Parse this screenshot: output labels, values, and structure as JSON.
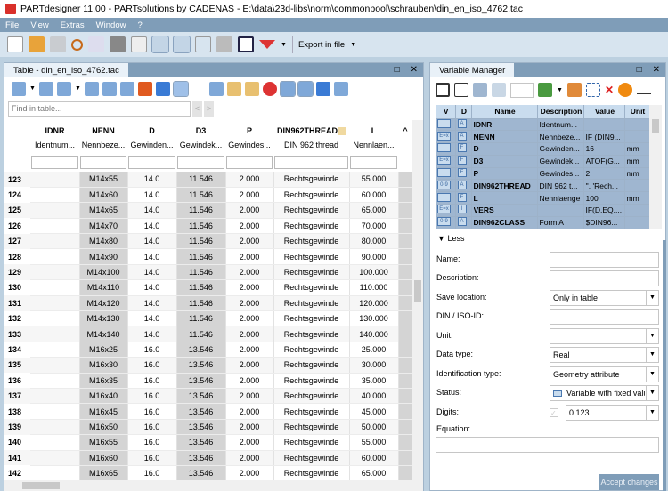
{
  "window": {
    "title": "PARTdesigner 11.00 - PARTsolutions by CADENAS - E:\\data\\23d-libs\\norm\\commonpool\\schrauben\\din_en_iso_4762.tac"
  },
  "menu": [
    "File",
    "View",
    "Extras",
    "Window",
    "?"
  ],
  "toolbar": {
    "export_label": "Export in file"
  },
  "table_panel": {
    "tab": "Table - din_en_iso_4762.tac",
    "find_placeholder": "Find in table...",
    "columns": [
      {
        "name": "IDNR",
        "desc": "Identnum..."
      },
      {
        "name": "NENN",
        "desc": "Nennbeze..."
      },
      {
        "name": "D",
        "desc": "Gewinden..."
      },
      {
        "name": "D3",
        "desc": "Gewindek..."
      },
      {
        "name": "P",
        "desc": "Gewindes..."
      },
      {
        "name": "DIN962THREAD",
        "desc": "DIN 962 thread"
      },
      {
        "name": "L",
        "desc": "Nennlaen..."
      }
    ],
    "rows": [
      [
        "123",
        "",
        "M14x55",
        "14.0",
        "11.546",
        "2.000",
        "Rechtsgewinde",
        "55.000"
      ],
      [
        "124",
        "",
        "M14x60",
        "14.0",
        "11.546",
        "2.000",
        "Rechtsgewinde",
        "60.000"
      ],
      [
        "125",
        "",
        "M14x65",
        "14.0",
        "11.546",
        "2.000",
        "Rechtsgewinde",
        "65.000"
      ],
      [
        "126",
        "",
        "M14x70",
        "14.0",
        "11.546",
        "2.000",
        "Rechtsgewinde",
        "70.000"
      ],
      [
        "127",
        "",
        "M14x80",
        "14.0",
        "11.546",
        "2.000",
        "Rechtsgewinde",
        "80.000"
      ],
      [
        "128",
        "",
        "M14x90",
        "14.0",
        "11.546",
        "2.000",
        "Rechtsgewinde",
        "90.000"
      ],
      [
        "129",
        "",
        "M14x100",
        "14.0",
        "11.546",
        "2.000",
        "Rechtsgewinde",
        "100.000"
      ],
      [
        "130",
        "",
        "M14x110",
        "14.0",
        "11.546",
        "2.000",
        "Rechtsgewinde",
        "110.000"
      ],
      [
        "131",
        "",
        "M14x120",
        "14.0",
        "11.546",
        "2.000",
        "Rechtsgewinde",
        "120.000"
      ],
      [
        "132",
        "",
        "M14x130",
        "14.0",
        "11.546",
        "2.000",
        "Rechtsgewinde",
        "130.000"
      ],
      [
        "133",
        "",
        "M14x140",
        "14.0",
        "11.546",
        "2.000",
        "Rechtsgewinde",
        "140.000"
      ],
      [
        "134",
        "",
        "M16x25",
        "16.0",
        "13.546",
        "2.000",
        "Rechtsgewinde",
        "25.000"
      ],
      [
        "135",
        "",
        "M16x30",
        "16.0",
        "13.546",
        "2.000",
        "Rechtsgewinde",
        "30.000"
      ],
      [
        "136",
        "",
        "M16x35",
        "16.0",
        "13.546",
        "2.000",
        "Rechtsgewinde",
        "35.000"
      ],
      [
        "137",
        "",
        "M16x40",
        "16.0",
        "13.546",
        "2.000",
        "Rechtsgewinde",
        "40.000"
      ],
      [
        "138",
        "",
        "M16x45",
        "16.0",
        "13.546",
        "2.000",
        "Rechtsgewinde",
        "45.000"
      ],
      [
        "139",
        "",
        "M16x50",
        "16.0",
        "13.546",
        "2.000",
        "Rechtsgewinde",
        "50.000"
      ],
      [
        "140",
        "",
        "M16x55",
        "16.0",
        "13.546",
        "2.000",
        "Rechtsgewinde",
        "55.000"
      ],
      [
        "141",
        "",
        "M16x60",
        "16.0",
        "13.546",
        "2.000",
        "Rechtsgewinde",
        "60.000"
      ],
      [
        "142",
        "",
        "M16x65",
        "16.0",
        "13.546",
        "2.000",
        "Rechtsgewinde",
        "65.000"
      ]
    ]
  },
  "variable_manager": {
    "title": "Variable Manager",
    "headers": [
      "V",
      "D",
      "Name",
      "Description",
      "Value",
      "Unit"
    ],
    "rows": [
      [
        "",
        "A",
        "IDNR",
        "Identnum...",
        "",
        ""
      ],
      [
        "E=x",
        "A",
        "NENN",
        "Nennbeze...",
        "IF (DIN9...",
        ""
      ],
      [
        "",
        "F",
        "D",
        "Gewinden...",
        "16",
        "mm"
      ],
      [
        "E=x",
        "F",
        "D3",
        "Gewindek...",
        "ATOF(G...",
        "mm"
      ],
      [
        "",
        "F",
        "P",
        "Gewindes...",
        "2",
        "mm"
      ],
      [
        "0-9",
        "A",
        "DIN962THREAD",
        "DIN 962 t...",
        "'', 'Rech...",
        ""
      ],
      [
        "",
        "F",
        "L",
        "Nennlaenge",
        "100",
        "mm"
      ],
      [
        "E=x",
        "I",
        "VERS",
        "",
        "IF(D.EQ....",
        ""
      ],
      [
        "0-9",
        "A",
        "DIN962CLASS",
        "Form A",
        "$DIN96...",
        ""
      ]
    ],
    "less_label": "Less",
    "form": [
      {
        "label": "Name:",
        "value": ""
      },
      {
        "label": "Description:",
        "value": ""
      },
      {
        "label": "Save location:",
        "value": "Only in table",
        "dropdown": true
      },
      {
        "label": "DIN / ISO-ID:",
        "value": ""
      },
      {
        "label": "Unit:",
        "value": "",
        "dropdown": true
      },
      {
        "label": "Data type:",
        "value": "Real",
        "dropdown": true
      },
      {
        "label": "Identification type:",
        "value": "Geometry attribute",
        "dropdown": true
      },
      {
        "label": "Status:",
        "value": "Variable with fixed value",
        "dropdown": true
      },
      {
        "label": "Digits:",
        "value": "0.123",
        "dropdown": true
      }
    ],
    "equation_label": "Equation:",
    "equation_value": "",
    "accept_label": "Accept changes"
  },
  "colors": {
    "accent": "#7f9db8",
    "selection": "#9fb6d0"
  }
}
